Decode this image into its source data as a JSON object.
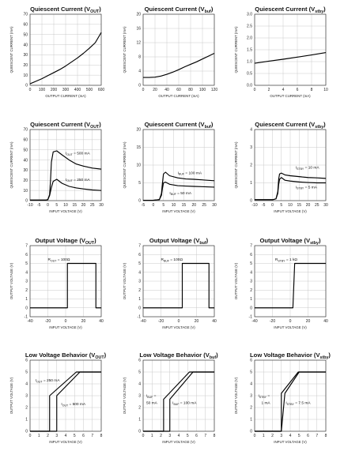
{
  "chart_data": [
    {
      "type": "line",
      "title": "Quiescent Current (V",
      "title_sub": "OUT",
      "xlabel": "OUTPUT CURRENT (mA)",
      "ylabel": "QUIESCENT CURRENT (mA)",
      "xlim": [
        0,
        600
      ],
      "ylim": [
        0,
        70
      ],
      "xticks": [
        0,
        100,
        200,
        300,
        400,
        500,
        600
      ],
      "yticks": [
        0,
        10,
        20,
        30,
        40,
        50,
        60,
        70
      ],
      "grid": true,
      "series": [
        {
          "x": [
            0,
            50,
            100,
            150,
            200,
            250,
            300,
            350,
            400,
            450,
            500,
            550,
            600
          ],
          "y": [
            1.5,
            4,
            6.5,
            9.5,
            12.5,
            15.5,
            19,
            23,
            27,
            31.5,
            36.5,
            42,
            52
          ]
        }
      ],
      "annotations": []
    },
    {
      "type": "line",
      "title": "Quiescent Current (V",
      "title_sub": "buf",
      "xlabel": "OUTPUT CURRENT (mA)",
      "ylabel": "QUIESCENT CURRENT (mA)",
      "xlim": [
        0,
        120
      ],
      "ylim": [
        0,
        20
      ],
      "xticks": [
        0,
        20,
        40,
        60,
        80,
        100,
        120
      ],
      "yticks": [
        0,
        4,
        8,
        12,
        16,
        20
      ],
      "grid": true,
      "series": [
        {
          "x": [
            0,
            10,
            20,
            30,
            40,
            50,
            60,
            70,
            80,
            90,
            100,
            110,
            120
          ],
          "y": [
            2.2,
            2.2,
            2.3,
            2.6,
            3.1,
            3.7,
            4.4,
            5.2,
            5.9,
            6.6,
            7.4,
            8.2,
            9
          ]
        }
      ],
      "annotations": []
    },
    {
      "type": "line",
      "title": "Quiescent Current (V",
      "title_sub": "stby",
      "xlabel": "OUTPUT CURRENT (mA)",
      "ylabel": "QUIESCENT CURRENT (mA)",
      "xlim": [
        0,
        10
      ],
      "ylim": [
        0,
        3.0
      ],
      "xticks": [
        0,
        2,
        4,
        6,
        8,
        10
      ],
      "yticks": [
        0,
        0.5,
        1.0,
        1.5,
        2.0,
        2.5,
        3.0
      ],
      "yfmt": 1,
      "grid": true,
      "series": [
        {
          "x": [
            0,
            2,
            4,
            6,
            8,
            10
          ],
          "y": [
            0.93,
            1.02,
            1.1,
            1.19,
            1.28,
            1.38
          ]
        }
      ],
      "annotations": []
    },
    {
      "type": "line",
      "title": "Quiescent Current (V",
      "title_sub": "OUT",
      "xlabel": "INPUT VOLTAGE (V)",
      "ylabel": "QUIESCENT CURRENT (mA)",
      "xlim": [
        -10,
        30
      ],
      "ylim": [
        0,
        70
      ],
      "xticks": [
        -10,
        -5,
        0,
        5,
        10,
        15,
        20,
        25,
        30
      ],
      "yticks": [
        0,
        10,
        20,
        30,
        40,
        50,
        60,
        70
      ],
      "grid": true,
      "series": [
        {
          "x": [
            -10,
            -4,
            -1,
            0,
            1,
            1.5,
            2,
            3,
            5,
            8,
            12,
            16,
            20,
            25,
            30
          ],
          "y": [
            0.5,
            0.5,
            0.5,
            1,
            6,
            20,
            38,
            48,
            49,
            45,
            40,
            36,
            34,
            32,
            31
          ]
        },
        {
          "x": [
            -10,
            -4,
            -1,
            0,
            1,
            2,
            3,
            5,
            8,
            12,
            16,
            20,
            25,
            30
          ],
          "y": [
            0.5,
            0.5,
            0.5,
            1,
            5,
            13,
            19,
            21,
            17,
            14,
            12.5,
            11.5,
            10.5,
            10
          ]
        }
      ],
      "annotations": [
        {
          "main": "I",
          "sub": "OUT",
          "rest": " = 500 mA",
          "x": 10,
          "y": 45.5
        },
        {
          "main": "I",
          "sub": "OUT",
          "rest": " = 250 mA",
          "x": 10,
          "y": 19.5
        }
      ]
    },
    {
      "type": "line",
      "title": "Quiescent Current (V",
      "title_sub": "buf",
      "xlabel": "INPUT VOLTAGE (V)",
      "ylabel": "QUIESCENT CURRENT (mA)",
      "xlim": [
        -5,
        30
      ],
      "ylim": [
        0,
        20
      ],
      "xticks": [
        -5,
        0,
        5,
        10,
        15,
        20,
        25,
        30
      ],
      "yticks": [
        0,
        5,
        10,
        15,
        20
      ],
      "grid": true,
      "series": [
        {
          "x": [
            -5,
            0,
            3,
            4,
            4.5,
            5,
            6,
            8,
            12,
            16,
            20,
            25,
            30
          ],
          "y": [
            0.1,
            0.1,
            0.3,
            2,
            5,
            7.5,
            8,
            7,
            6.4,
            6.1,
            6,
            5.8,
            5.6
          ]
        },
        {
          "x": [
            -5,
            0,
            3,
            4,
            4.5,
            5,
            6,
            8,
            12,
            16,
            20,
            25,
            30
          ],
          "y": [
            0.1,
            0.1,
            0.3,
            1.5,
            3.5,
            5,
            5.2,
            4.6,
            4.2,
            4.1,
            4,
            3.9,
            3.8
          ]
        }
      ],
      "annotations": [
        {
          "main": "I",
          "sub": "BUF",
          "rest": " = 100 mA",
          "x": 12,
          "y": 7.5
        },
        {
          "main": "I",
          "sub": "BUF",
          "rest": " = 50 mA",
          "x": 8,
          "y": 1.8
        }
      ]
    },
    {
      "type": "line",
      "title": "Quiescent Current (V",
      "title_sub": "stby",
      "xlabel": "INPUT VOLTAGE (V)",
      "ylabel": "QUIESCENT CURRENT (mA)",
      "xlim": [
        -10,
        30
      ],
      "ylim": [
        0,
        4
      ],
      "xticks": [
        -10,
        -5,
        0,
        5,
        10,
        15,
        20,
        25,
        30
      ],
      "yticks": [
        0,
        1,
        2,
        3,
        4
      ],
      "grid": true,
      "series": [
        {
          "x": [
            -10,
            0,
            2,
            3,
            3.5,
            4,
            5,
            7,
            10,
            15,
            20,
            25,
            30
          ],
          "y": [
            0.05,
            0.05,
            0.1,
            0.5,
            1.2,
            1.5,
            1.55,
            1.45,
            1.4,
            1.35,
            1.3,
            1.28,
            1.25
          ]
        },
        {
          "x": [
            -10,
            0,
            2,
            3,
            3.5,
            4,
            5,
            7,
            10,
            15,
            20,
            25,
            30
          ],
          "y": [
            0.05,
            0.05,
            0.1,
            0.4,
            0.9,
            1.2,
            1.3,
            1.15,
            1.1,
            1.05,
            1.02,
            1.0,
            1.0
          ]
        }
      ],
      "annotations": [
        {
          "main": "I",
          "sub": "STBY",
          "rest": " = 10 mA",
          "x": 13,
          "y": 1.8
        },
        {
          "main": "I",
          "sub": "STBY",
          "rest": " = 5 mA",
          "x": 13,
          "y": 0.7
        }
      ]
    },
    {
      "type": "line",
      "title": "Output Voltage (V",
      "title_sub": "OUT",
      "xlabel": "INPUT VOLTAGE (V)",
      "ylabel": "OUTPUT VOLTAGE (V)",
      "xlim": [
        -40,
        40
      ],
      "ylim": [
        -1,
        7
      ],
      "xticks": [
        -40,
        -20,
        0,
        20,
        40
      ],
      "yticks": [
        -1,
        0,
        1,
        2,
        3,
        4,
        5,
        6,
        7
      ],
      "grid": true,
      "series": [
        {
          "x": [
            -40,
            0,
            2,
            2,
            34,
            34,
            40
          ],
          "y": [
            0,
            0,
            0,
            5,
            5,
            0,
            0
          ]
        }
      ],
      "annotations": [
        {
          "main": "R",
          "sub": "OUT",
          "rest": " = 100Ω",
          "x": -20,
          "y": 5.3
        }
      ]
    },
    {
      "type": "line",
      "title": "Output Voltage (V",
      "title_sub": "buf",
      "xlabel": "INPUT VOLTAGE (V)",
      "ylabel": "OUTPUT VOLTAGE (V)",
      "xlim": [
        -40,
        40
      ],
      "ylim": [
        -1,
        7
      ],
      "xticks": [
        -40,
        -20,
        0,
        20,
        40
      ],
      "yticks": [
        -1,
        0,
        1,
        2,
        3,
        4,
        5,
        6,
        7
      ],
      "grid": true,
      "series": [
        {
          "x": [
            -40,
            0,
            4,
            4,
            34,
            34,
            40
          ],
          "y": [
            0,
            0,
            0,
            5,
            5,
            0,
            0
          ]
        }
      ],
      "annotations": [
        {
          "main": "R",
          "sub": "BUF",
          "rest": " = 100Ω",
          "x": -20,
          "y": 5.3
        }
      ]
    },
    {
      "type": "line",
      "title": "Output Voltage (V",
      "title_sub": "stby",
      "xlabel": "INPUT VOLTAGE (V)",
      "ylabel": "OUTPUT VOLTAGE (V)",
      "xlim": [
        -40,
        40
      ],
      "ylim": [
        -1,
        7
      ],
      "xticks": [
        -40,
        -20,
        0,
        20,
        40
      ],
      "yticks": [
        -1,
        0,
        1,
        2,
        3,
        4,
        5,
        6,
        7
      ],
      "grid": true,
      "series": [
        {
          "x": [
            -40,
            0,
            3,
            5,
            40
          ],
          "y": [
            0,
            0,
            0,
            5,
            5
          ]
        }
      ],
      "annotations": [
        {
          "main": "R",
          "sub": "STBY",
          "rest": " = 1 kΩ",
          "x": -17,
          "y": 5.3
        }
      ]
    },
    {
      "type": "line",
      "title": "Low Voltage Behavior (V",
      "title_sub": "OUT",
      "xlabel": "INPUT VOLTAGE (V)",
      "ylabel": "OUTPUT VOLTAGE (V)",
      "xlim": [
        0,
        8
      ],
      "ylim": [
        0,
        6
      ],
      "xticks": [
        0,
        1,
        2,
        3,
        4,
        5,
        6,
        7,
        8
      ],
      "yticks": [
        0,
        1,
        2,
        3,
        4,
        5,
        6
      ],
      "grid": true,
      "series": [
        {
          "x": [
            0,
            2.2,
            2.2,
            5.2,
            8
          ],
          "y": [
            0,
            0,
            3,
            5,
            5
          ]
        },
        {
          "x": [
            0,
            3.0,
            3.0,
            5.6,
            8
          ],
          "y": [
            0,
            0,
            3,
            5,
            5
          ]
        }
      ],
      "annotations": [
        {
          "main": "I",
          "sub": "OUT",
          "rest": " = 250 mA",
          "x": 0.6,
          "y": 4.2
        },
        {
          "main": "I",
          "sub": "OUT",
          "rest": " = 500 mA",
          "x": 3.5,
          "y": 2.2
        }
      ]
    },
    {
      "type": "line",
      "title": "Low Voltage Behavior (V",
      "title_sub": "buf",
      "xlabel": "INPUT VOLTAGE (V)",
      "ylabel": "OUTPUT VOLTAGE (V)",
      "xlim": [
        0,
        8
      ],
      "ylim": [
        0,
        6
      ],
      "xticks": [
        0,
        1,
        2,
        3,
        4,
        5,
        6,
        7,
        8
      ],
      "yticks": [
        0,
        1,
        2,
        3,
        4,
        5,
        6
      ],
      "grid": true,
      "series": [
        {
          "x": [
            0,
            2.3,
            2.3,
            5.2,
            8
          ],
          "y": [
            0,
            0,
            2.7,
            5,
            5
          ]
        },
        {
          "x": [
            0,
            3.0,
            3.0,
            5.6,
            8
          ],
          "y": [
            0,
            0,
            2.7,
            5,
            5
          ]
        }
      ],
      "annotations": [
        {
          "main": "I",
          "sub": "BUF",
          "rest": " =",
          "x": 0.35,
          "y": 2.9
        },
        {
          "main": "50 mA",
          "sub": "",
          "rest": "",
          "x": 0.35,
          "y": 2.3
        },
        {
          "main": "I",
          "sub": "BUF",
          "rest": " = 100 mA",
          "x": 3.3,
          "y": 2.3
        }
      ]
    },
    {
      "type": "line",
      "title": "Low Voltage Behavior (V",
      "title_sub": "stby",
      "xlabel": "INPUT VOLTAGE (V)",
      "ylabel": "OUTPUT VOLTAGE (V)",
      "xlim": [
        0,
        8
      ],
      "ylim": [
        0,
        6
      ],
      "xticks": [
        0,
        1,
        2,
        3,
        4,
        5,
        6,
        7,
        8
      ],
      "yticks": [
        0,
        1,
        2,
        3,
        4,
        5,
        6
      ],
      "grid": true,
      "series": [
        {
          "x": [
            0,
            3.0,
            3.0,
            4.9,
            8
          ],
          "y": [
            0,
            0,
            3.2,
            5,
            5
          ]
        },
        {
          "x": [
            0,
            3.0,
            3.4,
            5.0,
            8
          ],
          "y": [
            0,
            0,
            3.2,
            5,
            5
          ]
        }
      ],
      "annotations": [
        {
          "main": "I",
          "sub": "STBY",
          "rest": " =",
          "x": 0.4,
          "y": 2.9
        },
        {
          "main": "1 mA",
          "sub": "",
          "rest": "",
          "x": 0.75,
          "y": 2.3
        },
        {
          "main": "I",
          "sub": "STBY",
          "rest": " = 7.5 mA",
          "x": 3.5,
          "y": 2.3
        }
      ]
    }
  ]
}
